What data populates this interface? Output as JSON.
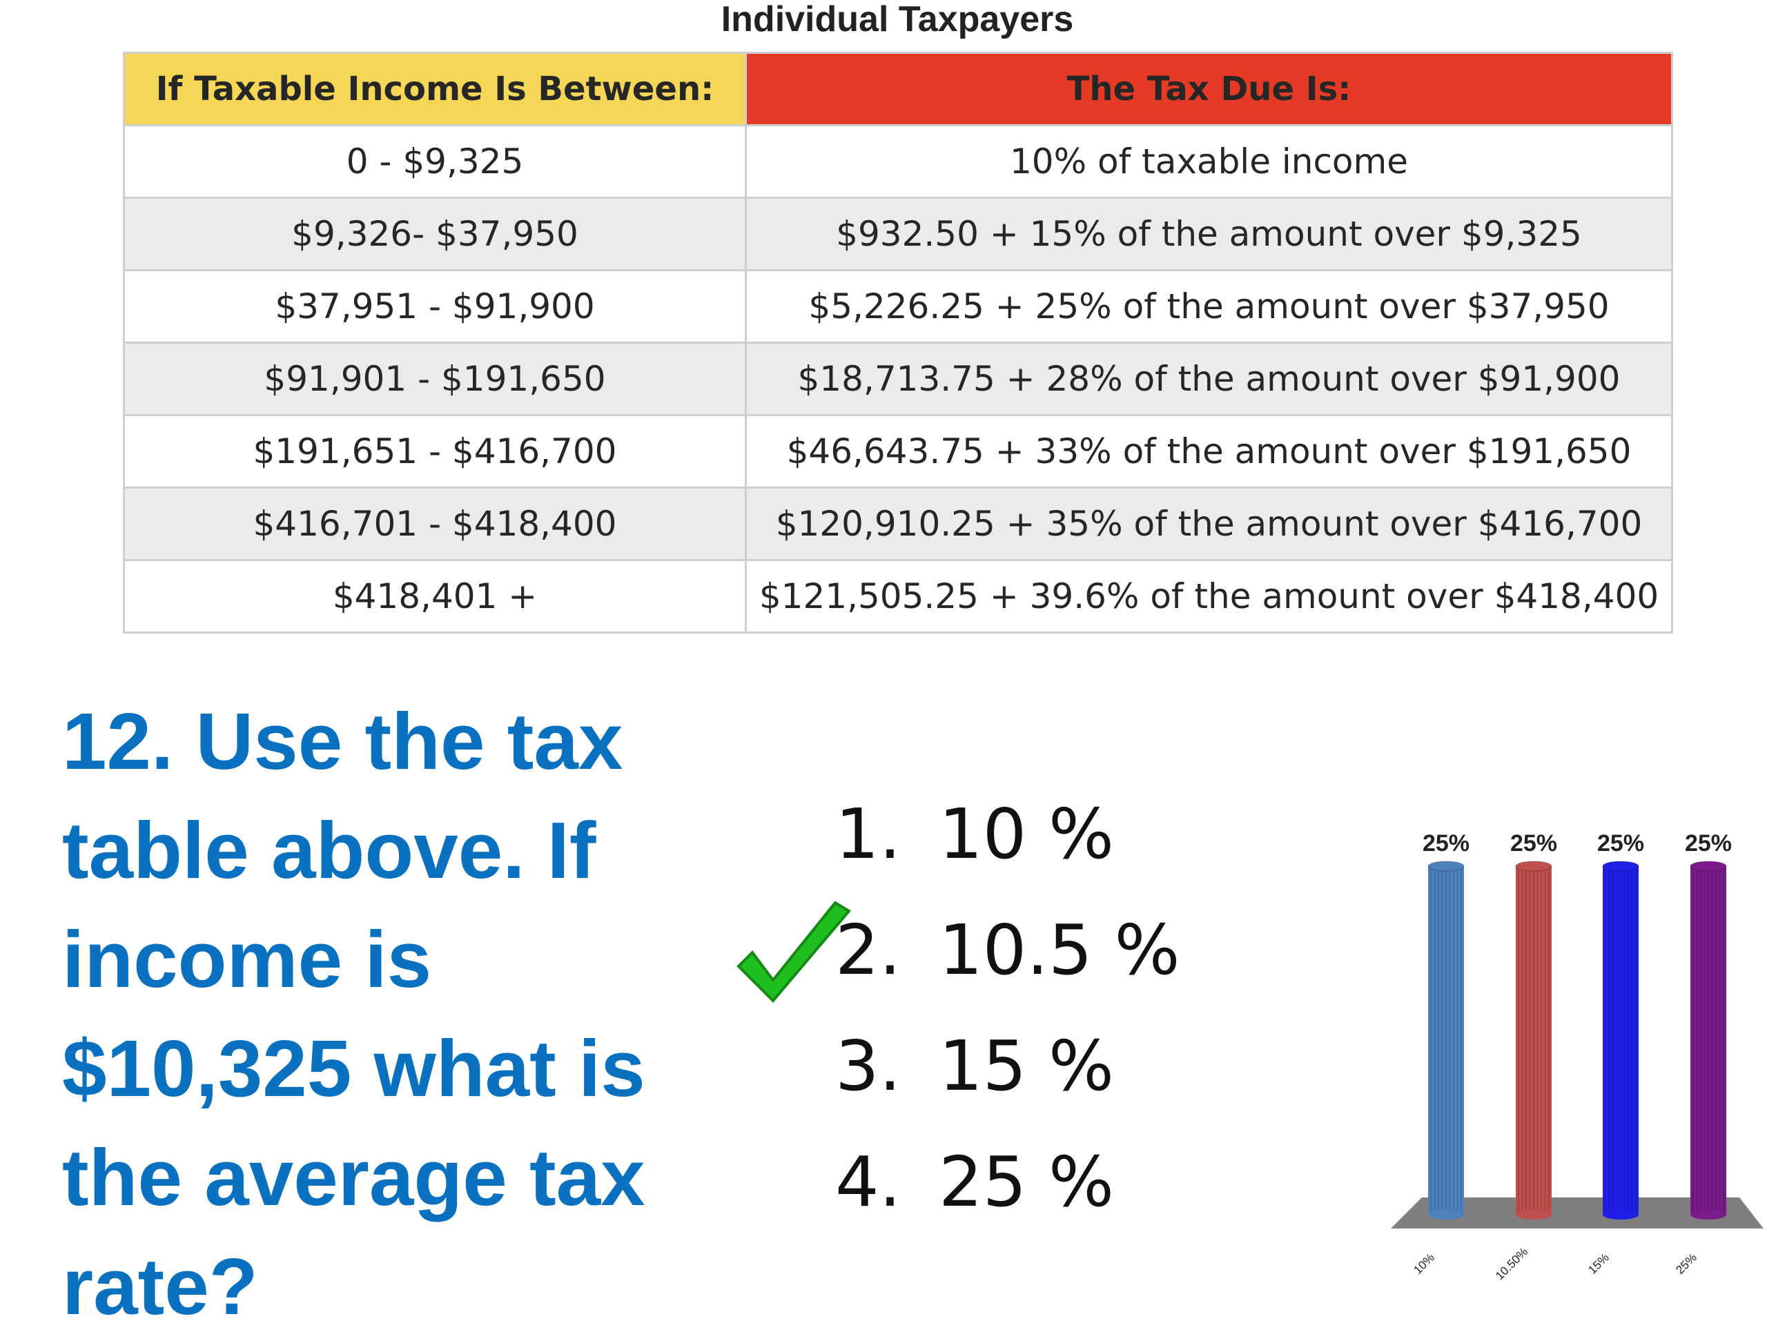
{
  "table": {
    "title": "Individual Taxpayers",
    "headers": [
      "If Taxable Income Is Between:",
      "The Tax Due Is:"
    ],
    "rows": [
      [
        "0 - $9,325",
        "10% of taxable income"
      ],
      [
        "$9,326- $37,950",
        "$932.50 + 15% of the amount over $9,325"
      ],
      [
        "$37,951 - $91,900",
        "$5,226.25 + 25% of the amount over $37,950"
      ],
      [
        "$91,901 - $191,650",
        "$18,713.75 + 28% of the amount over $91,900"
      ],
      [
        "$191,651 - $416,700",
        "$46,643.75 + 33% of the amount over $191,650"
      ],
      [
        "$416,701 - $418,400",
        "$120,910.25 + 35% of the amount over $416,700"
      ],
      [
        "$418,401 +",
        "$121,505.25 + 39.6%  of the amount over $418,400"
      ]
    ],
    "colors": {
      "income_header": "#f5d657",
      "tax_header": "#e53b26",
      "alt_row": "#ebebeb"
    }
  },
  "question": {
    "text": "12. Use the tax table above. If income is $10,325 what is the average tax rate?",
    "color": "#0a70c0"
  },
  "answers": [
    {
      "number": "1.",
      "text": "10 %"
    },
    {
      "number": "2.",
      "text": "10.5 %",
      "correct": true
    },
    {
      "number": "3.",
      "text": "15 %"
    },
    {
      "number": "4.",
      "text": "25 %"
    }
  ],
  "correct_mark": {
    "icon": "checkmark-icon",
    "color": "#1fbf1f"
  },
  "chart_data": {
    "type": "bar",
    "categories": [
      "10%",
      "10.50%",
      "15%",
      "25%"
    ],
    "values": [
      25,
      25,
      25,
      25
    ],
    "data_labels": [
      "25%",
      "25%",
      "25%",
      "25%"
    ],
    "ylim": [
      0,
      25
    ],
    "colors": [
      "#4f81bd",
      "#c0504d",
      "#1f1fe8",
      "#7a1a8c"
    ],
    "style": "3d-cylinder",
    "grid": false
  }
}
